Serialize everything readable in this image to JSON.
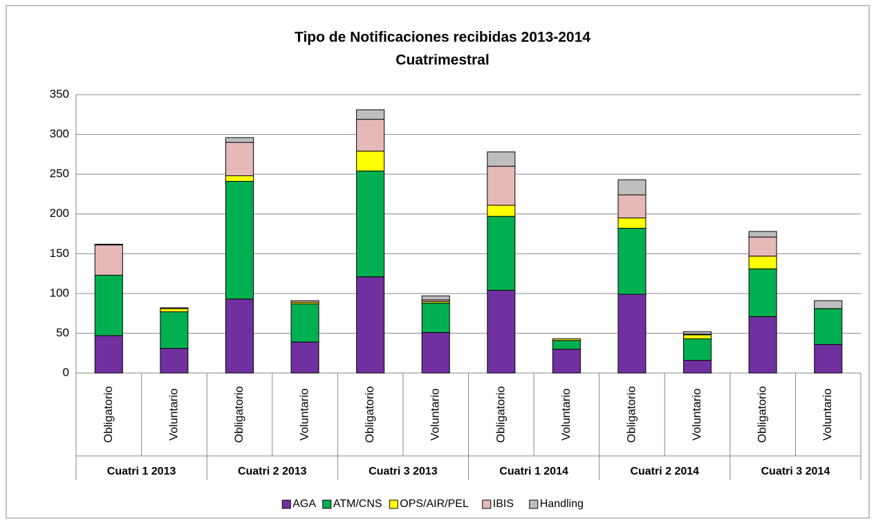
{
  "chart_data": {
    "type": "stacked_bar",
    "title": [
      "Tipo de Notificaciones recibidas 2013-2014",
      "Cuatrimestral"
    ],
    "categories": [
      "Obligatorio",
      "Voluntario",
      "Obligatorio",
      "Voluntario",
      "Obligatorio",
      "Voluntario",
      "Obligatorio",
      "Voluntario",
      "Obligatorio",
      "Voluntario",
      "Obligatorio",
      "Voluntario"
    ],
    "groups": [
      "Cuatri 1 2013",
      "Cuatri 2 2013",
      "Cuatri 3 2013",
      "Cuatri 1 2014",
      "Cuatri 2 2014",
      "Cuatri 3 2014"
    ],
    "series": [
      {
        "name": "AGA",
        "color": "#7030a0",
        "values": [
          47,
          31,
          93,
          39,
          121,
          51,
          104,
          30,
          99,
          16,
          71,
          36
        ]
      },
      {
        "name": "ATM/CNS",
        "color": "#00b050",
        "values": [
          76,
          46,
          148,
          48,
          133,
          37,
          93,
          11,
          83,
          27,
          60,
          45
        ]
      },
      {
        "name": "OPS/AIR/PEL",
        "color": "#ffff00",
        "values": [
          0,
          4,
          7,
          2,
          25,
          2,
          14,
          2,
          13,
          5,
          16,
          0
        ]
      },
      {
        "name": "IBIS",
        "color": "#e6b9b8",
        "values": [
          38,
          1,
          42,
          2,
          40,
          2,
          49,
          0,
          29,
          1,
          24,
          0
        ]
      },
      {
        "name": "Handling",
        "color": "#bfbfbf",
        "values": [
          1,
          0,
          6,
          0,
          12,
          5,
          18,
          0,
          19,
          3,
          7,
          10
        ]
      }
    ],
    "ylim": [
      0,
      350
    ],
    "yticks": [
      0,
      50,
      100,
      150,
      200,
      250,
      300,
      350
    ],
    "grid": true,
    "legend": "bottom"
  }
}
